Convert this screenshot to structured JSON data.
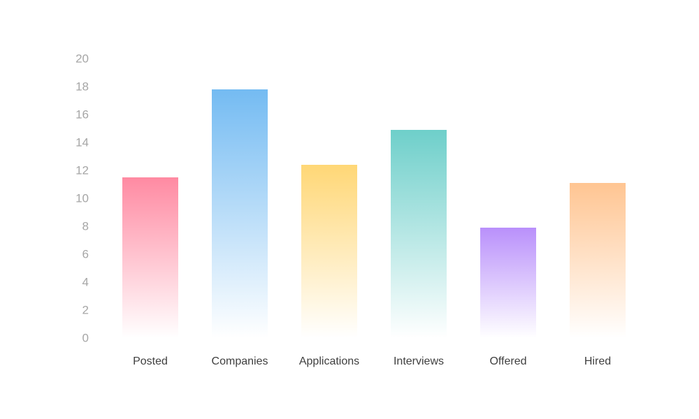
{
  "chart_data": {
    "type": "bar",
    "title": "",
    "xlabel": "",
    "ylabel": "",
    "categories": [
      "Posted",
      "Companies",
      "Applications",
      "Interviews",
      "Offered",
      "Hired"
    ],
    "values": [
      11.5,
      17.8,
      12.4,
      14.9,
      7.9,
      11.1
    ],
    "ylim": [
      0,
      20
    ],
    "yticks": [
      "0",
      "2",
      "4",
      "6",
      "8",
      "10",
      "12",
      "14",
      "16",
      "18",
      "20"
    ],
    "grid": false,
    "legend": "none",
    "colors": [
      "#ff8aa2",
      "#74bbf2",
      "#ffd776",
      "#6ecfca",
      "#b990fb",
      "#ffc592"
    ]
  }
}
